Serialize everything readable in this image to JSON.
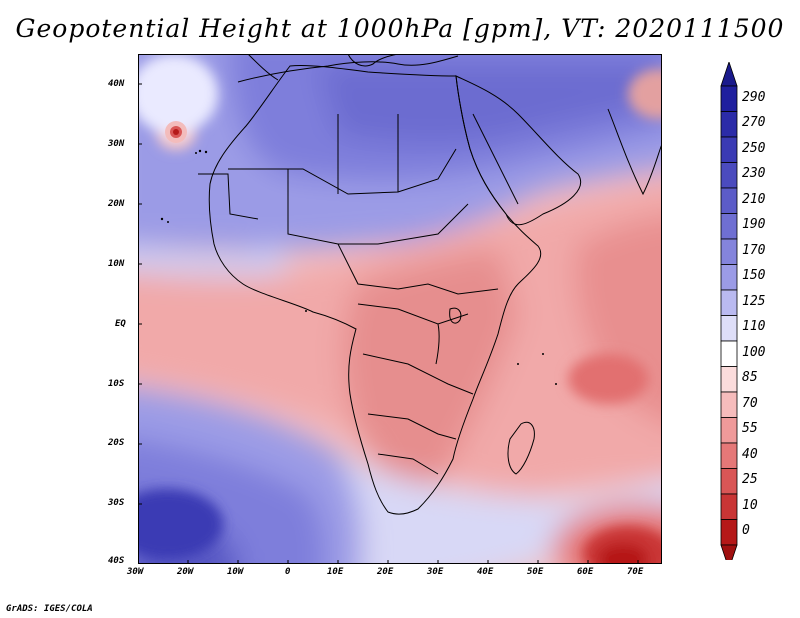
{
  "title": "Geopotential Height at 1000hPa [gpm], VT: 2020111500",
  "credit": "GrADS: IGES/COLA",
  "map": {
    "projection": "latlon",
    "lon_range": [
      -30,
      75
    ],
    "lat_range": [
      -40,
      45
    ],
    "lon_ticks": [
      "30W",
      "20W",
      "10W",
      "0",
      "10E",
      "20E",
      "30E",
      "40E",
      "50E",
      "60E",
      "70E"
    ],
    "lat_ticks": [
      "40N",
      "30N",
      "20N",
      "10N",
      "EQ",
      "10S",
      "20S",
      "30S",
      "40S"
    ],
    "features": [
      "high-center-north-africa",
      "high-center-south-atlantic",
      "low-center-south-indian-ocean",
      "low-center-atlantic-near-canary"
    ]
  },
  "colorbar": {
    "labels": [
      "290",
      "270",
      "250",
      "230",
      "210",
      "190",
      "170",
      "150",
      "125",
      "110",
      "100",
      "85",
      "70",
      "55",
      "40",
      "25",
      "10",
      "0"
    ],
    "colors": [
      "#1f1f9e",
      "#2b2ba8",
      "#3a3ab4",
      "#4b4bbe",
      "#5c5cc8",
      "#6f6fd2",
      "#8484dc",
      "#9b9be6",
      "#babaf0",
      "#dedef8",
      "#ffffff",
      "#fbdcdc",
      "#f6bcbc",
      "#ef9a9a",
      "#e57878",
      "#d95656",
      "#c93535",
      "#b51818"
    ],
    "top_arrow_color": "#1a1a8c",
    "bottom_arrow_color": "#a01010"
  }
}
